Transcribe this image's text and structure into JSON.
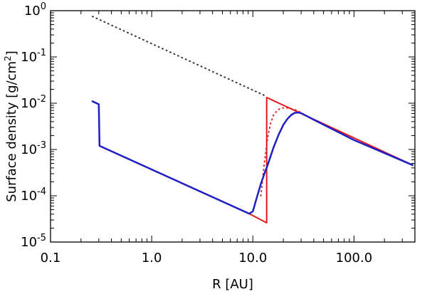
{
  "chart_data": {
    "type": "line",
    "xlabel": "R [AU]",
    "ylabel_prefix": "Surface density  [g/cm",
    "ylabel_sup": "2",
    "ylabel_suffix": "]",
    "xscale": "log",
    "yscale": "log",
    "xlim": [
      0.1,
      400
    ],
    "ylim": [
      1e-05,
      1
    ],
    "grid": false,
    "legend": "none",
    "x_ticks": [
      {
        "value": 0.1,
        "label": "0.1"
      },
      {
        "value": 1,
        "label": "1.0"
      },
      {
        "value": 10,
        "label": "10.0"
      },
      {
        "value": 100,
        "label": "100.0"
      }
    ],
    "y_ticks": [
      {
        "value": 1,
        "base": "10",
        "exp": "0"
      },
      {
        "value": 0.1,
        "base": "10",
        "exp": "-1"
      },
      {
        "value": 0.01,
        "base": "10",
        "exp": "-2"
      },
      {
        "value": 0.001,
        "base": "10",
        "exp": "-3"
      },
      {
        "value": 0.0001,
        "base": "10",
        "exp": "-4"
      },
      {
        "value": 1e-05,
        "base": "10",
        "exp": "-5"
      }
    ],
    "series": [
      {
        "color": "#333333",
        "style": "dotted",
        "width": 2,
        "points": [
          [
            0.26,
            0.75
          ],
          [
            13.7,
            0.014
          ]
        ]
      },
      {
        "color": "#e11d1d",
        "style": "dotted",
        "width": 2,
        "points": [
          [
            12.0,
            0.0001
          ],
          [
            13.0,
            0.00051
          ],
          [
            14.0,
            0.0018
          ],
          [
            15.0,
            0.0037
          ],
          [
            16.0,
            0.0055
          ],
          [
            17.5,
            0.0071
          ],
          [
            19.0,
            0.0078
          ],
          [
            21.0,
            0.008
          ],
          [
            23.0,
            0.0078
          ],
          [
            27.0,
            0.0071
          ],
          [
            40.0,
            0.0044
          ],
          [
            100.0,
            0.0016
          ],
          [
            380.0,
            0.00046
          ]
        ]
      },
      {
        "color": "#e11d1d",
        "style": "solid",
        "width": 2,
        "points": [
          [
            0.26,
            0.011
          ],
          [
            0.3,
            0.0095
          ],
          [
            0.305,
            0.0012
          ],
          [
            9.2,
            4.1e-05
          ],
          [
            13.7,
            2.6e-05
          ],
          [
            13.7,
            0.0133
          ],
          [
            380.0,
            0.00046
          ]
        ]
      },
      {
        "color": "#1f1fc8",
        "style": "solid",
        "width": 2.5,
        "points": [
          [
            0.26,
            0.011
          ],
          [
            0.3,
            0.0095
          ],
          [
            0.305,
            0.0012
          ],
          [
            9.2,
            4.1e-05
          ],
          [
            10.0,
            4.6e-05
          ],
          [
            11.0,
            9.5e-05
          ],
          [
            12.0,
            0.00018
          ],
          [
            13.0,
            0.0003
          ],
          [
            14.0,
            0.00046
          ],
          [
            16.0,
            0.0011
          ],
          [
            18.0,
            0.0021
          ],
          [
            20.0,
            0.0034
          ],
          [
            22.0,
            0.0046
          ],
          [
            24.0,
            0.0056
          ],
          [
            26.0,
            0.0062
          ],
          [
            28.0,
            0.0063
          ],
          [
            30.0,
            0.0061
          ],
          [
            40.0,
            0.0044
          ],
          [
            100.0,
            0.0016
          ],
          [
            380.0,
            0.00046
          ]
        ]
      }
    ]
  }
}
